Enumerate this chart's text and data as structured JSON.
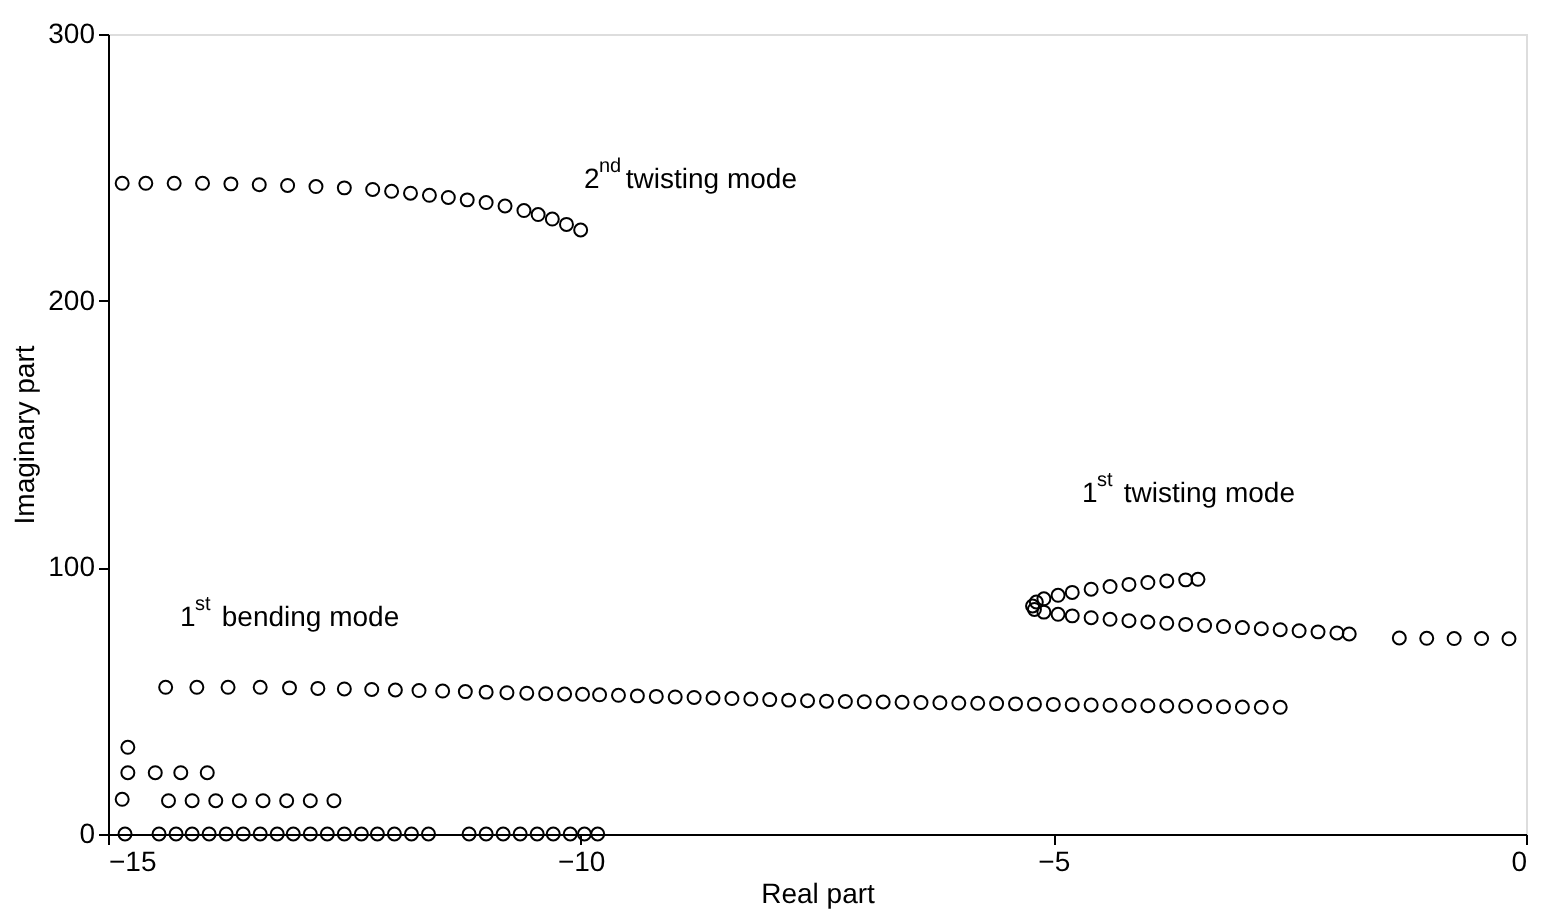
{
  "chart_data": {
    "type": "scatter",
    "xlabel": "Real part",
    "ylabel": "Imaginary part",
    "xlim": [
      -15,
      0
    ],
    "xticks": [
      -15,
      -10,
      -5,
      0
    ],
    "ylim": [
      0,
      300
    ],
    "yticks": [
      0,
      100,
      200,
      300
    ],
    "grid": false,
    "marker": "circle",
    "annotations": [
      "2$^{nd}$ twisting mode",
      "1$^{st}$ twisting mode",
      "1$^{st}$ bending mode"
    ],
    "series": [
      {
        "color": "#000000",
        "x": [
          -14.85,
          -14.6,
          -14.3,
          -14.0,
          -13.7,
          -13.4,
          -13.1,
          -12.8,
          -12.5,
          -12.2,
          -12.0,
          -11.8,
          -11.6,
          -11.4,
          -11.2,
          -11.0,
          -10.8,
          -10.6,
          -10.45,
          -10.3,
          -10.15,
          -10.0
        ],
        "values": [
          244,
          244,
          244,
          244,
          243.8,
          243.5,
          243.2,
          242.8,
          242.3,
          241.7,
          241,
          240.3,
          239.5,
          238.7,
          237.8,
          236.8,
          235.5,
          233.8,
          232.3,
          230.6,
          228.6,
          226.5
        ]
      },
      {
        "color": "#000000",
        "x": [
          -14.82,
          -14.46,
          -14.28,
          -14.11,
          -13.93,
          -13.75,
          -13.57,
          -13.39,
          -13.21,
          -13.04,
          -12.86,
          -12.68,
          -12.5,
          -12.32,
          -12.15,
          -11.97,
          -11.79,
          -11.61,
          -11.18,
          -11.0,
          -10.82,
          -10.64,
          -10.46,
          -10.29,
          -10.11,
          -9.96,
          -9.82
        ],
        "values": [
          0,
          0,
          0,
          0,
          0,
          0,
          0,
          0,
          0,
          0,
          0,
          0,
          0,
          0,
          0,
          0,
          0,
          0,
          0,
          0,
          0,
          0,
          0,
          0,
          0,
          0,
          0
        ]
      },
      {
        "color": "#000000",
        "x": [
          -14.85,
          -14.36,
          -14.11,
          -13.86,
          -13.61,
          -13.36,
          -13.11,
          -12.86,
          -12.61,
          -14.79,
          -14.5,
          -14.23,
          -13.95,
          -14.79
        ],
        "values": [
          13,
          12.5,
          12.5,
          12.5,
          12.5,
          12.5,
          12.5,
          12.5,
          12.5,
          23,
          23,
          23,
          23,
          32.5
        ]
      },
      {
        "color": "#000000",
        "x": [
          -14.39,
          -14.06,
          -13.73,
          -13.39,
          -13.08,
          -12.78,
          -12.5,
          -12.21,
          -11.96,
          -11.71,
          -11.46,
          -11.22,
          -11.0,
          -10.78,
          -10.57,
          -10.37,
          -10.17,
          -9.98,
          -9.8,
          -9.6,
          -9.4,
          -9.2,
          -9.0,
          -8.8,
          -8.6,
          -8.4,
          -8.2,
          -8.0,
          -7.8,
          -7.6,
          -7.4,
          -7.2,
          -7.0,
          -6.8,
          -6.6,
          -6.4,
          -6.2,
          -6.0,
          -5.8,
          -5.6,
          -5.4,
          -5.2,
          -5.0,
          -4.8,
          -4.6,
          -4.4,
          -4.2,
          -4.0,
          -3.8,
          -3.6,
          -3.4,
          -3.2,
          -3.0,
          -2.8,
          -2.6
        ],
        "values": [
          55,
          55,
          55,
          55,
          54.8,
          54.6,
          54.4,
          54.2,
          54,
          53.8,
          53.6,
          53.4,
          53.2,
          53,
          52.8,
          52.6,
          52.5,
          52.4,
          52.2,
          52,
          51.8,
          51.6,
          51.4,
          51.2,
          51,
          50.8,
          50.6,
          50.4,
          50.2,
          50,
          49.8,
          49.7,
          49.6,
          49.5,
          49.4,
          49.3,
          49.2,
          49.1,
          49,
          48.9,
          48.8,
          48.7,
          48.6,
          48.5,
          48.4,
          48.3,
          48.2,
          48.1,
          48,
          47.9,
          47.8,
          47.7,
          47.6,
          47.5,
          47.5
        ]
      },
      {
        "color": "#000000",
        "x": [
          -3.47,
          -3.6,
          -3.8,
          -4.0,
          -4.2,
          -4.4,
          -4.6,
          -4.8,
          -4.95,
          -5.1,
          -5.18,
          -5.22,
          -5.2,
          -5.1,
          -4.95,
          -4.8,
          -4.6,
          -4.4,
          -4.2,
          -4.0,
          -3.8,
          -3.6,
          -3.4,
          -3.2,
          -3.0,
          -2.8,
          -2.6,
          -2.4,
          -2.2,
          -2.0,
          -1.87,
          -1.34,
          -1.05,
          -0.76,
          -0.47,
          -0.18
        ],
        "values": [
          95.5,
          95.3,
          94.9,
          94.3,
          93.6,
          92.8,
          91.8,
          90.6,
          89.5,
          88.2,
          87,
          85.5,
          84.2,
          83.2,
          82.4,
          81.8,
          81.1,
          80.5,
          80,
          79.5,
          79,
          78.6,
          78.2,
          77.8,
          77.4,
          77,
          76.6,
          76.2,
          75.8,
          75.4,
          75,
          73.5,
          73.4,
          73.3,
          73.3,
          73.2
        ]
      }
    ]
  }
}
